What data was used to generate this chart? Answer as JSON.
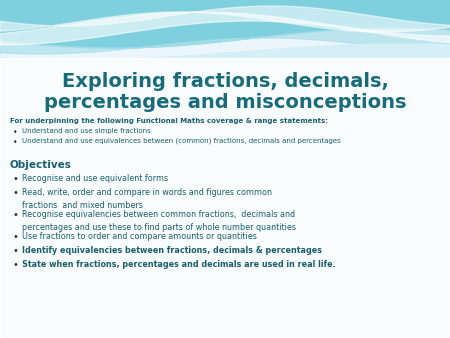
{
  "title_line1": "Exploring fractions, decimals,",
  "title_line2": "percentages and misconceptions",
  "title_color": "#1a6b7a",
  "background_color": "#f0f9fc",
  "subheader_bold": "For underpinning the following Functional Maths coverage & range statements:",
  "subheader_bullets": [
    "Understand and use simple fractions",
    "Understand and use equivalences between (common) fractions, decimals and percentages"
  ],
  "objectives_label": "Objectives",
  "objectives_bullets": [
    {
      "text": "Recognise and use equivalent forms",
      "bold": false
    },
    {
      "text": "Read, write, order and compare in words and figures common\nfractions  and mixed numbers",
      "bold": false
    },
    {
      "text": "Recognise equivalencies between common fractions,  decimals and\npercentages and use these to find parts of whole number quantities",
      "bold": false
    },
    {
      "text": "Use fractions to order and compare amounts or quantities",
      "bold": false
    },
    {
      "text": "Identify equivalencies between fractions, decimals & percentages",
      "bold": true
    },
    {
      "text": "State when fractions, percentages and decimals are used in real life.",
      "bold": true
    }
  ],
  "text_color": "#1a5f6e",
  "bullet_color": "#333333"
}
